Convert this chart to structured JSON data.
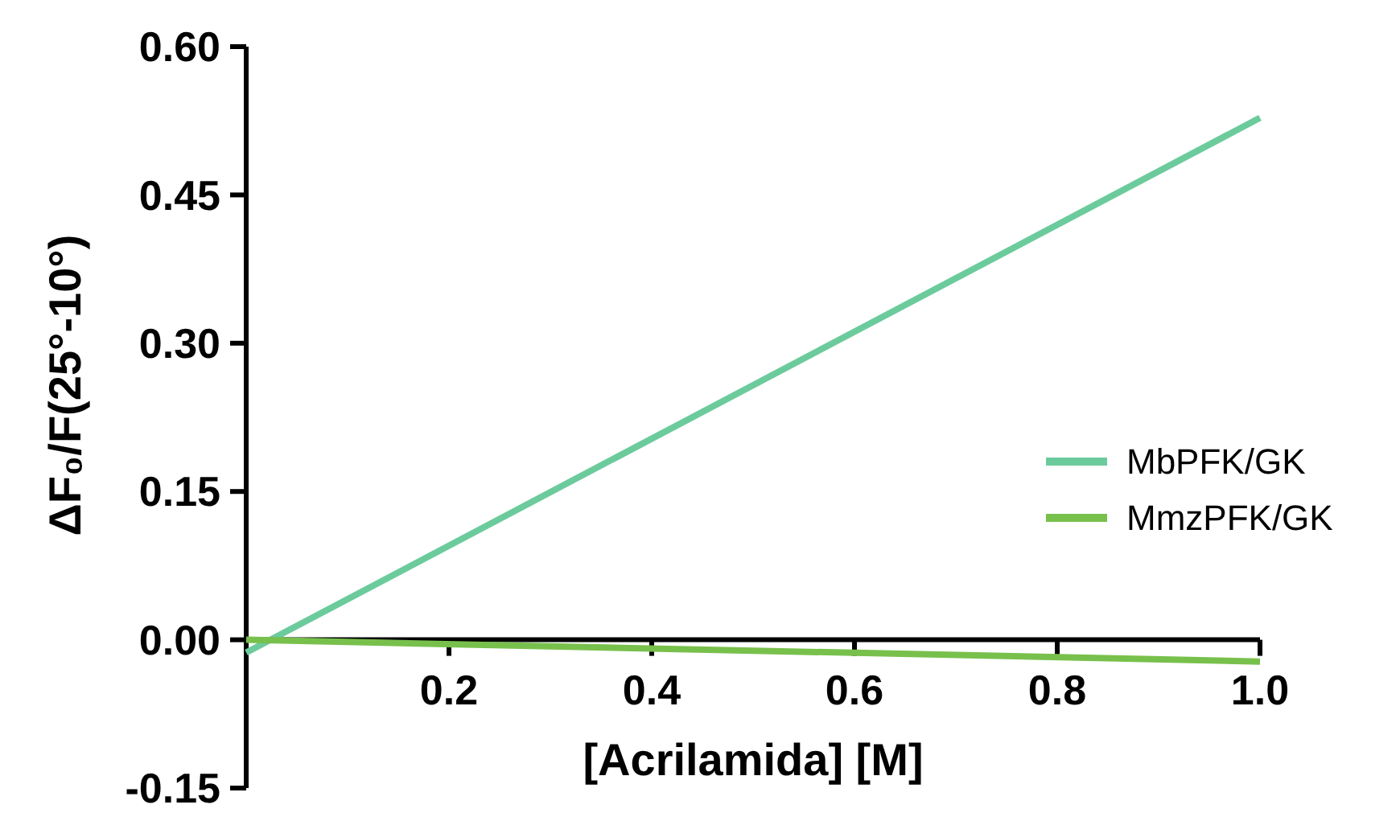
{
  "chart_data": {
    "type": "line",
    "xlabel": "[Acrilamida] [M]",
    "ylabel": "ΔF₀/F(25°-10°)",
    "x": [
      0,
      1
    ],
    "series": [
      {
        "name": "MbPFK/GK",
        "color": "#6ccb9c",
        "values": [
          -0.013,
          0.528
        ]
      },
      {
        "name": "MmzPFK/GK",
        "color": "#78c04c",
        "values": [
          0,
          -0.022
        ]
      }
    ],
    "xlim": [
      0,
      1
    ],
    "xticks": [
      0.2,
      0.4,
      0.6,
      0.8,
      {
        "value": 1,
        "label": "1.0"
      }
    ],
    "ylim": [
      -0.15,
      0.6
    ],
    "yticks": [
      {
        "value": -0.15,
        "label": "-0.15"
      },
      {
        "value": 0,
        "label": "0.00"
      },
      {
        "value": 0.15,
        "label": "0.15"
      },
      {
        "value": 0.3,
        "label": "0.30"
      },
      {
        "value": 0.45,
        "label": "0.45"
      },
      {
        "value": 0.6,
        "label": "0.60"
      }
    ],
    "legend": "right",
    "marker": "none",
    "line_style": "solid"
  }
}
